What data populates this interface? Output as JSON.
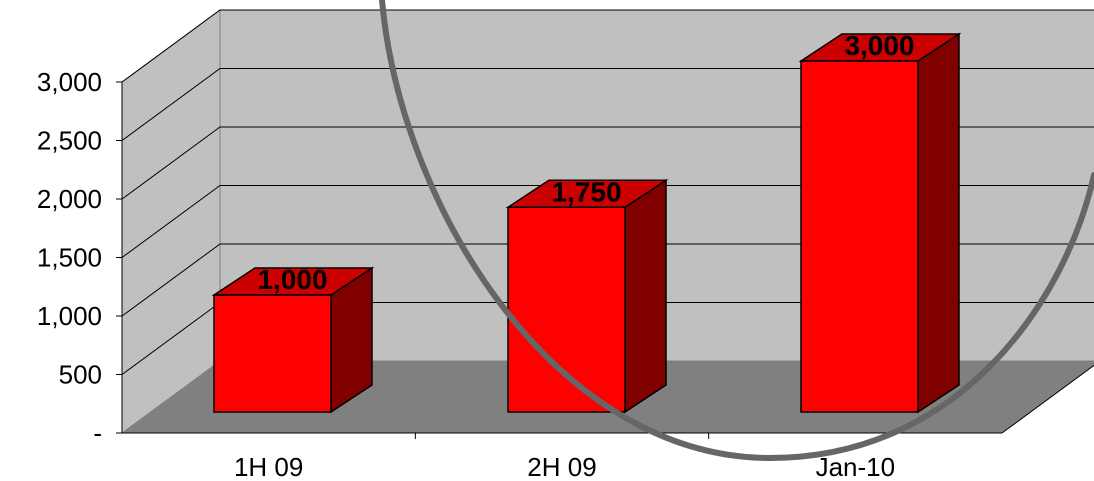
{
  "chart_data": {
    "type": "bar",
    "style": "3d-column",
    "categories": [
      "1H 09",
      "2H 09",
      "Jan-10"
    ],
    "values": [
      1000,
      1750,
      3000
    ],
    "data_labels": [
      "1,000",
      "1,750",
      "3,000"
    ],
    "title": "",
    "xlabel": "",
    "ylabel": "",
    "ylim": [
      0,
      3000
    ],
    "y_ticks": [
      0,
      500,
      1000,
      1500,
      2000,
      2500,
      3000
    ],
    "y_tick_labels": [
      "-",
      "500",
      "1,000",
      "1,500",
      "2,000",
      "2,500",
      "3,000"
    ],
    "grid": true,
    "legend": "none",
    "colors": {
      "bar_front": "#ff0000",
      "bar_top": "#cc0000",
      "bar_side": "#800000",
      "back_wall": "#c0c0c0",
      "side_wall": "#c0c0c0",
      "floor": "#808080",
      "gridline": "#000000",
      "annotation_circle": "#666666"
    },
    "annotations": [
      {
        "type": "circle-highlight"
      }
    ]
  }
}
